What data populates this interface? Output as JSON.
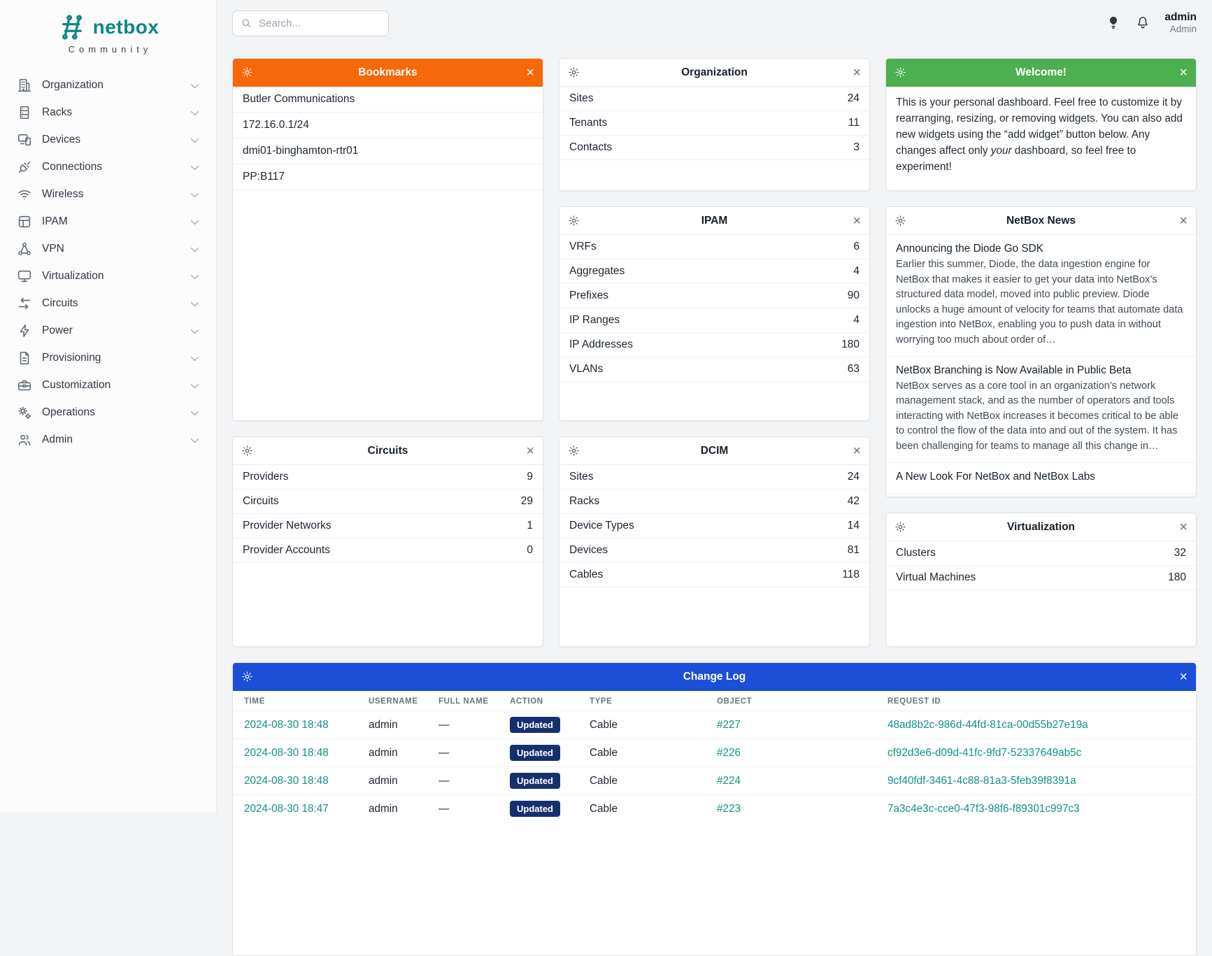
{
  "brand": {
    "name": "netbox",
    "tagline": "Community"
  },
  "header": {
    "search_placeholder": "Search...",
    "user": {
      "name": "admin",
      "role": "Admin"
    }
  },
  "icons": {
    "search": "search-icon",
    "theme_toggle": "light-bulb-icon",
    "notifications": "bell-icon",
    "widget_settings": "gear-icon",
    "widget_close": "close-icon",
    "menu_expand": "chevron-down-icon"
  },
  "colors": {
    "brand_teal": "#0e8688",
    "bookmarks_header": "#f76808",
    "welcome_header": "#4caf50",
    "changelog_header": "#1d4ed8",
    "action_badge": "#16306e",
    "link_teal": "#0e9384"
  },
  "sidebar": {
    "items": [
      {
        "label": "Organization",
        "icon": "building"
      },
      {
        "label": "Racks",
        "icon": "server-rack"
      },
      {
        "label": "Devices",
        "icon": "devices"
      },
      {
        "label": "Connections",
        "icon": "plug"
      },
      {
        "label": "Wireless",
        "icon": "wifi"
      },
      {
        "label": "IPAM",
        "icon": "grid"
      },
      {
        "label": "VPN",
        "icon": "network"
      },
      {
        "label": "Virtualization",
        "icon": "monitor"
      },
      {
        "label": "Circuits",
        "icon": "transfer"
      },
      {
        "label": "Power",
        "icon": "bolt"
      },
      {
        "label": "Provisioning",
        "icon": "file"
      },
      {
        "label": "Customization",
        "icon": "toolbox"
      },
      {
        "label": "Operations",
        "icon": "gears"
      },
      {
        "label": "Admin",
        "icon": "users"
      }
    ]
  },
  "widgets": {
    "bookmarks": {
      "title": "Bookmarks",
      "items": [
        "Butler Communications",
        "172.16.0.1/24",
        "dmi01-binghamton-rtr01",
        "PP:B117"
      ]
    },
    "circuits": {
      "title": "Circuits",
      "rows": [
        {
          "label": "Providers",
          "value": "9"
        },
        {
          "label": "Circuits",
          "value": "29"
        },
        {
          "label": "Provider Networks",
          "value": "1"
        },
        {
          "label": "Provider Accounts",
          "value": "0"
        }
      ]
    },
    "organization": {
      "title": "Organization",
      "rows": [
        {
          "label": "Sites",
          "value": "24"
        },
        {
          "label": "Tenants",
          "value": "11"
        },
        {
          "label": "Contacts",
          "value": "3"
        }
      ]
    },
    "ipam": {
      "title": "IPAM",
      "rows": [
        {
          "label": "VRFs",
          "value": "6"
        },
        {
          "label": "Aggregates",
          "value": "4"
        },
        {
          "label": "Prefixes",
          "value": "90"
        },
        {
          "label": "IP Ranges",
          "value": "4"
        },
        {
          "label": "IP Addresses",
          "value": "180"
        },
        {
          "label": "VLANs",
          "value": "63"
        }
      ]
    },
    "dcim": {
      "title": "DCIM",
      "rows": [
        {
          "label": "Sites",
          "value": "24"
        },
        {
          "label": "Racks",
          "value": "42"
        },
        {
          "label": "Device Types",
          "value": "14"
        },
        {
          "label": "Devices",
          "value": "81"
        },
        {
          "label": "Cables",
          "value": "118"
        }
      ]
    },
    "welcome": {
      "title": "Welcome!",
      "text_before": "This is your personal dashboard. Feel free to customize it by rearranging, resizing, or removing widgets. You can also add new widgets using the “add widget” button below. Any changes affect only ",
      "text_italic": "your",
      "text_after": " dashboard, so feel free to experiment!"
    },
    "news": {
      "title": "NetBox News",
      "items": [
        {
          "headline": "Announcing the Diode Go SDK",
          "preview": "Earlier this summer, Diode, the data ingestion engine for NetBox that makes it easier to get your data into NetBox’s structured data model, moved into public preview. Diode unlocks a huge amount of velocity for teams that automate data ingestion into NetBox, enabling you to push data in without worrying too much about order of…"
        },
        {
          "headline": "NetBox Branching is Now Available in Public Beta",
          "preview": "NetBox serves as a core tool in an organization’s network management stack, and as the number of operators and tools interacting with NetBox increases it becomes critical to be able to control the flow of the data into and out of the system. It has been challenging for teams to manage all this change in…"
        },
        {
          "headline": "A New Look For NetBox and NetBox Labs",
          "preview": ""
        }
      ]
    },
    "virtualization": {
      "title": "Virtualization",
      "rows": [
        {
          "label": "Clusters",
          "value": "32"
        },
        {
          "label": "Virtual Machines",
          "value": "180"
        }
      ]
    },
    "changelog": {
      "title": "Change Log",
      "columns": [
        "Time",
        "Username",
        "Full Name",
        "Action",
        "Type",
        "Object",
        "Request ID"
      ],
      "rows": [
        {
          "time": "2024-08-30 18:48",
          "username": "admin",
          "full_name": "—",
          "action": "Updated",
          "type": "Cable",
          "object": "#227",
          "request_id": "48ad8b2c-986d-44fd-81ca-00d55b27e19a"
        },
        {
          "time": "2024-08-30 18:48",
          "username": "admin",
          "full_name": "—",
          "action": "Updated",
          "type": "Cable",
          "object": "#226",
          "request_id": "cf92d3e6-d09d-41fc-9fd7-52337649ab5c"
        },
        {
          "time": "2024-08-30 18:48",
          "username": "admin",
          "full_name": "—",
          "action": "Updated",
          "type": "Cable",
          "object": "#224",
          "request_id": "9cf40fdf-3461-4c88-81a3-5feb39f8391a"
        },
        {
          "time": "2024-08-30 18:47",
          "username": "admin",
          "full_name": "—",
          "action": "Updated",
          "type": "Cable",
          "object": "#223",
          "request_id": "7a3c4e3c-cce0-47f3-98f6-f89301c997c3"
        }
      ]
    }
  }
}
